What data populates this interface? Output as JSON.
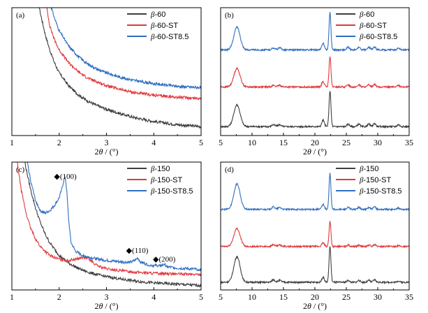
{
  "axis_title": {
    "saxs": [
      "2",
      "θ",
      " / (°)"
    ],
    "xrd": [
      "2",
      "θ",
      " / (°)"
    ]
  },
  "colors": {
    "s1": "#3f3f3f",
    "s2": "#e0383d",
    "s3": "#2f6ec1"
  },
  "chart_data": [
    {
      "type": "line",
      "panel_label": "(a)",
      "xlabel": "2θ / (°)",
      "xlim": [
        1,
        5
      ],
      "xticks": [
        "1",
        "2",
        "3",
        "4",
        "5"
      ],
      "ylim": [
        0,
        1
      ],
      "legend_placement": "top-right",
      "series": [
        {
          "name": "β-60",
          "color": "#3f3f3f",
          "x": [
            1.56,
            1.6,
            1.7,
            1.8,
            1.9,
            2.0,
            2.2,
            2.4,
            2.6,
            2.8,
            3.0,
            3.3,
            3.6,
            4.0,
            4.5,
            5.0
          ],
          "y": [
            1.05,
            0.96,
            0.8,
            0.67,
            0.57,
            0.49,
            0.39,
            0.32,
            0.27,
            0.235,
            0.205,
            0.17,
            0.14,
            0.11,
            0.085,
            0.07
          ]
        },
        {
          "name": "β-60-ST",
          "color": "#e0383d",
          "x": [
            1.72,
            1.75,
            1.8,
            1.9,
            2.0,
            2.2,
            2.4,
            2.6,
            2.8,
            3.0,
            3.3,
            3.6,
            4.0,
            4.5,
            5.0
          ],
          "y": [
            1.05,
            0.97,
            0.86,
            0.75,
            0.67,
            0.57,
            0.5,
            0.45,
            0.42,
            0.39,
            0.36,
            0.335,
            0.315,
            0.3,
            0.29
          ]
        },
        {
          "name": "β-60-ST8.5",
          "color": "#2f6ec1",
          "x": [
            1.8,
            1.85,
            1.9,
            2.0,
            2.2,
            2.4,
            2.6,
            2.8,
            3.0,
            3.3,
            3.6,
            4.0,
            4.5,
            5.0
          ],
          "y": [
            1.05,
            0.98,
            0.92,
            0.82,
            0.7,
            0.62,
            0.56,
            0.52,
            0.49,
            0.455,
            0.43,
            0.405,
            0.385,
            0.375
          ]
        }
      ]
    },
    {
      "type": "line",
      "panel_label": "(b)",
      "xlabel": "2θ / (°)",
      "xlim": [
        5,
        35
      ],
      "xticks": [
        "5",
        "10",
        "15",
        "20",
        "25",
        "30",
        "35"
      ],
      "ylim": [
        0,
        1
      ],
      "legend_placement": "top-right",
      "peaks": [
        {
          "x": 7.6,
          "h": 0.17,
          "w": 0.5
        },
        {
          "x": 13.4,
          "h": 0.015,
          "w": 0.25
        },
        {
          "x": 14.4,
          "h": 0.015,
          "w": 0.25
        },
        {
          "x": 21.3,
          "h": 0.05,
          "w": 0.2
        },
        {
          "x": 22.4,
          "h": 0.28,
          "w": 0.15
        },
        {
          "x": 25.3,
          "h": 0.02,
          "w": 0.2
        },
        {
          "x": 27.0,
          "h": 0.02,
          "w": 0.2
        },
        {
          "x": 28.6,
          "h": 0.02,
          "w": 0.2
        },
        {
          "x": 29.5,
          "h": 0.025,
          "w": 0.2
        },
        {
          "x": 33.3,
          "h": 0.015,
          "w": 0.2
        }
      ],
      "series": [
        {
          "name": "β-60",
          "color": "#3f3f3f",
          "baseline": 0.07,
          "peak_scale": 1.0
        },
        {
          "name": "β-60-ST",
          "color": "#e0383d",
          "baseline": 0.38,
          "peak_scale": 0.85
        },
        {
          "name": "β-60-ST8.5",
          "color": "#2f6ec1",
          "baseline": 0.67,
          "peak_scale": 1.05
        }
      ]
    },
    {
      "type": "line",
      "panel_label": "(c)",
      "xlabel": "2θ / (°)",
      "xlim": [
        1,
        5
      ],
      "xticks": [
        "1",
        "2",
        "3",
        "4",
        "5"
      ],
      "ylim": [
        0,
        1
      ],
      "legend_placement": "top-right",
      "annotations": [
        {
          "text": "◆(100)",
          "x": 2.13,
          "y": 0.87
        },
        {
          "text": "◆(110)",
          "x": 3.65,
          "y": 0.29
        },
        {
          "text": "◆(200)",
          "x": 4.22,
          "y": 0.22
        }
      ],
      "series": [
        {
          "name": "β-150",
          "color": "#3f3f3f",
          "x": [
            1.25,
            1.3,
            1.4,
            1.5,
            1.6,
            1.7,
            1.8,
            2.0,
            2.2,
            2.4,
            2.6,
            2.8,
            3.0,
            3.3,
            3.6,
            4.0,
            4.5,
            5.0
          ],
          "y": [
            1.05,
            0.95,
            0.78,
            0.64,
            0.53,
            0.44,
            0.37,
            0.27,
            0.21,
            0.17,
            0.14,
            0.12,
            0.105,
            0.085,
            0.07,
            0.055,
            0.045,
            0.035
          ]
        },
        {
          "name": "β-150-ST",
          "color": "#e0383d",
          "x": [
            1.1,
            1.15,
            1.2,
            1.3,
            1.4,
            1.5,
            1.6,
            1.8,
            2.0,
            2.2,
            2.4,
            2.5,
            2.6,
            2.7,
            2.8,
            3.0,
            3.3,
            3.6,
            4.0,
            4.5,
            5.0
          ],
          "y": [
            1.05,
            0.9,
            0.78,
            0.6,
            0.48,
            0.4,
            0.34,
            0.27,
            0.24,
            0.23,
            0.245,
            0.255,
            0.25,
            0.22,
            0.19,
            0.165,
            0.15,
            0.14,
            0.13,
            0.125,
            0.12
          ]
        },
        {
          "name": "β-150-ST8.5",
          "color": "#2f6ec1",
          "x": [
            1.3,
            1.35,
            1.4,
            1.5,
            1.6,
            1.7,
            1.8,
            1.9,
            2.0,
            2.05,
            2.1,
            2.13,
            2.16,
            2.2,
            2.25,
            2.35,
            2.5,
            2.7,
            3.0,
            3.3,
            3.5,
            3.6,
            3.66,
            3.72,
            3.85,
            4.0,
            4.15,
            4.22,
            4.3,
            4.5,
            5.0
          ],
          "y": [
            1.05,
            0.95,
            0.85,
            0.7,
            0.62,
            0.6,
            0.62,
            0.66,
            0.72,
            0.78,
            0.86,
            0.88,
            0.78,
            0.55,
            0.37,
            0.3,
            0.27,
            0.25,
            0.23,
            0.22,
            0.215,
            0.23,
            0.25,
            0.22,
            0.2,
            0.19,
            0.19,
            0.2,
            0.18,
            0.17,
            0.16
          ]
        }
      ]
    },
    {
      "type": "line",
      "panel_label": "(d)",
      "xlabel": "2θ / (°)",
      "xlim": [
        5,
        35
      ],
      "xticks": [
        "5",
        "10",
        "15",
        "20",
        "25",
        "30",
        "35"
      ],
      "ylim": [
        0,
        1
      ],
      "legend_placement": "top-right",
      "peaks": [
        {
          "x": 7.6,
          "h": 0.2,
          "w": 0.5
        },
        {
          "x": 13.4,
          "h": 0.02,
          "w": 0.25
        },
        {
          "x": 14.4,
          "h": 0.015,
          "w": 0.25
        },
        {
          "x": 21.3,
          "h": 0.04,
          "w": 0.2
        },
        {
          "x": 22.4,
          "h": 0.28,
          "w": 0.15
        },
        {
          "x": 25.3,
          "h": 0.015,
          "w": 0.2
        },
        {
          "x": 27.0,
          "h": 0.015,
          "w": 0.2
        },
        {
          "x": 28.6,
          "h": 0.015,
          "w": 0.2
        },
        {
          "x": 29.5,
          "h": 0.02,
          "w": 0.2
        },
        {
          "x": 33.3,
          "h": 0.01,
          "w": 0.2
        }
      ],
      "series": [
        {
          "name": "β-150",
          "color": "#3f3f3f",
          "baseline": 0.06,
          "peak_scale": 1.0
        },
        {
          "name": "β-150-ST",
          "color": "#e0383d",
          "baseline": 0.34,
          "peak_scale": 0.7
        },
        {
          "name": "β-150-ST8.5",
          "color": "#2f6ec1",
          "baseline": 0.63,
          "peak_scale": 1.0
        }
      ]
    }
  ]
}
